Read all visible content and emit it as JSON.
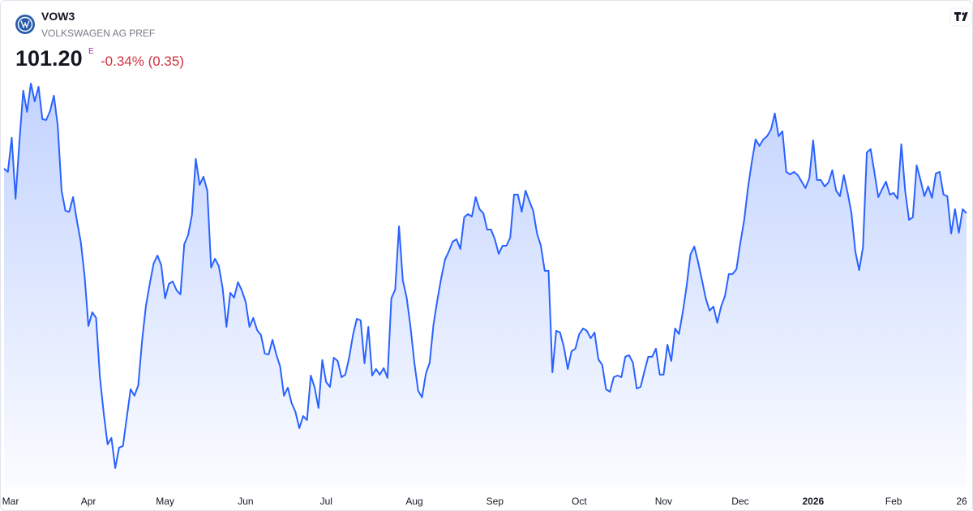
{
  "header": {
    "symbol": "VOW3",
    "name": "VOLKSWAGEN AG PREF",
    "price": "101.20",
    "price_flag": "E",
    "change": "-0.34% (0.35)"
  },
  "chart_data": {
    "type": "area",
    "color": "#2962ff",
    "categories": [
      null,
      "Mar",
      null,
      null,
      null,
      null,
      null,
      null,
      null,
      null,
      null,
      null,
      null,
      null,
      null,
      null,
      null,
      null,
      null,
      null,
      null,
      null,
      "Apr",
      null,
      null,
      null,
      null,
      null,
      null,
      null,
      null,
      null,
      null,
      null,
      null,
      null,
      null,
      null,
      null,
      null,
      null,
      null,
      "May",
      null,
      null,
      null,
      null,
      null,
      null,
      null,
      null,
      null,
      null,
      null,
      null,
      null,
      null,
      null,
      null,
      null,
      null,
      null,
      null,
      "Jun",
      null,
      null,
      null,
      null,
      null,
      null,
      null,
      null,
      null,
      null,
      null,
      null,
      null,
      null,
      null,
      null,
      null,
      null,
      null,
      null,
      "Jul",
      null,
      null,
      null,
      null,
      null,
      null,
      null,
      null,
      null,
      null,
      null,
      null,
      null,
      null,
      null,
      null,
      null,
      null,
      null,
      null,
      null,
      null,
      "Aug",
      null,
      null,
      null,
      null,
      null,
      null,
      null,
      null,
      null,
      null,
      null,
      null,
      null,
      null,
      null,
      null,
      null,
      null,
      null,
      null,
      "Sep",
      null,
      null,
      null,
      null,
      null,
      null,
      null,
      null,
      null,
      null,
      null,
      null,
      null,
      null,
      null,
      null,
      null,
      null,
      null,
      null,
      null,
      "Oct",
      null,
      null,
      null,
      null,
      null,
      null,
      null,
      null,
      null,
      null,
      null,
      null,
      null,
      null,
      null,
      null,
      null,
      null,
      null,
      null,
      null,
      "Nov",
      null,
      null,
      null,
      null,
      null,
      null,
      null,
      null,
      null,
      null,
      null,
      null,
      null,
      null,
      null,
      null,
      null,
      null,
      null,
      "Dec",
      null,
      null,
      null,
      null,
      null,
      null,
      null,
      null,
      null,
      null,
      null,
      null,
      null,
      null,
      null,
      null,
      null,
      null,
      "2026",
      null,
      null,
      null,
      null,
      null,
      null,
      null,
      null,
      null,
      null,
      null,
      null,
      null,
      null,
      null,
      null,
      null,
      null,
      null,
      null,
      "Feb",
      null,
      null,
      null,
      null,
      null,
      null,
      null,
      null,
      null,
      null,
      null,
      null,
      null,
      null,
      null,
      null,
      null,
      null,
      "26"
    ],
    "values": [
      104.23,
      104.01,
      106.32,
      102.19,
      106.04,
      109.51,
      108.08,
      110.0,
      108.79,
      109.78,
      107.58,
      107.53,
      108.13,
      109.18,
      107.14,
      102.74,
      101.37,
      101.31,
      102.3,
      100.71,
      99.28,
      96.97,
      93.56,
      94.49,
      94.11,
      90.09,
      87.62,
      85.53,
      85.97,
      83.93,
      85.31,
      85.42,
      87.34,
      89.27,
      88.83,
      89.54,
      92.57,
      94.93,
      96.42,
      97.79,
      98.34,
      97.68,
      95.43,
      96.42,
      96.58,
      95.98,
      95.7,
      99.11,
      99.72,
      101.09,
      104.89,
      103.13,
      103.68,
      102.74,
      97.52,
      98.12,
      97.63,
      96.14,
      93.5,
      95.81,
      95.48,
      96.53,
      95.98,
      95.21,
      93.5,
      94.11,
      93.28,
      92.95,
      91.69,
      91.63,
      92.62,
      91.63,
      90.81,
      88.83,
      89.38,
      88.33,
      87.73,
      86.63,
      87.45,
      87.18,
      90.2,
      89.38,
      88.0,
      91.25,
      89.76,
      89.43,
      91.41,
      91.19,
      90.09,
      90.26,
      91.41,
      92.95,
      94.05,
      93.94,
      91.03,
      93.5,
      90.2,
      90.64,
      90.26,
      90.7,
      90.04,
      95.43,
      96.03,
      100.32,
      96.64,
      95.48,
      93.5,
      91.08,
      89.16,
      88.72,
      90.31,
      91.08,
      93.67,
      95.32,
      96.8,
      98.07,
      98.62,
      99.28,
      99.44,
      98.78,
      100.93,
      101.15,
      100.98,
      102.3,
      101.48,
      101.2,
      100.1,
      100.1,
      99.44,
      98.45,
      99.0,
      99.0,
      99.55,
      102.47,
      102.47,
      101.31,
      102.74,
      102.03,
      101.37,
      99.83,
      99.0,
      97.3,
      97.3,
      90.42,
      93.23,
      93.12,
      92.13,
      90.64,
      91.85,
      92.02,
      93.01,
      93.39,
      93.23,
      92.73,
      93.12,
      91.3,
      90.92,
      89.27,
      89.1,
      90.09,
      90.2,
      90.09,
      91.47,
      91.58,
      91.08,
      89.32,
      89.43,
      90.48,
      91.47,
      91.47,
      92.02,
      90.26,
      90.26,
      92.29,
      91.19,
      93.39,
      93.01,
      94.49,
      96.25,
      98.4,
      98.95,
      97.9,
      96.69,
      95.43,
      94.6,
      94.88,
      93.78,
      94.88,
      95.59,
      97.08,
      97.08,
      97.41,
      99.17,
      100.71,
      102.91,
      104.67,
      106.21,
      105.77,
      106.21,
      106.43,
      106.87,
      107.97,
      106.43,
      106.76,
      104.01,
      103.84,
      104.01,
      103.79,
      103.35,
      102.91,
      103.57,
      106.15,
      103.46,
      103.46,
      103.02,
      103.29,
      104.12,
      102.74,
      102.36,
      103.79,
      102.58,
      101.2,
      98.62,
      97.35,
      98.89,
      105.33,
      105.55,
      103.95,
      102.3,
      102.85,
      103.35,
      102.47,
      102.58,
      102.19,
      105.88,
      102.74,
      100.76,
      100.93,
      104.45,
      103.46,
      102.36,
      103.02,
      102.25,
      103.9,
      104.01,
      102.47,
      102.36,
      99.83,
      101.48,
      99.88,
      101.48,
      101.2
    ]
  }
}
